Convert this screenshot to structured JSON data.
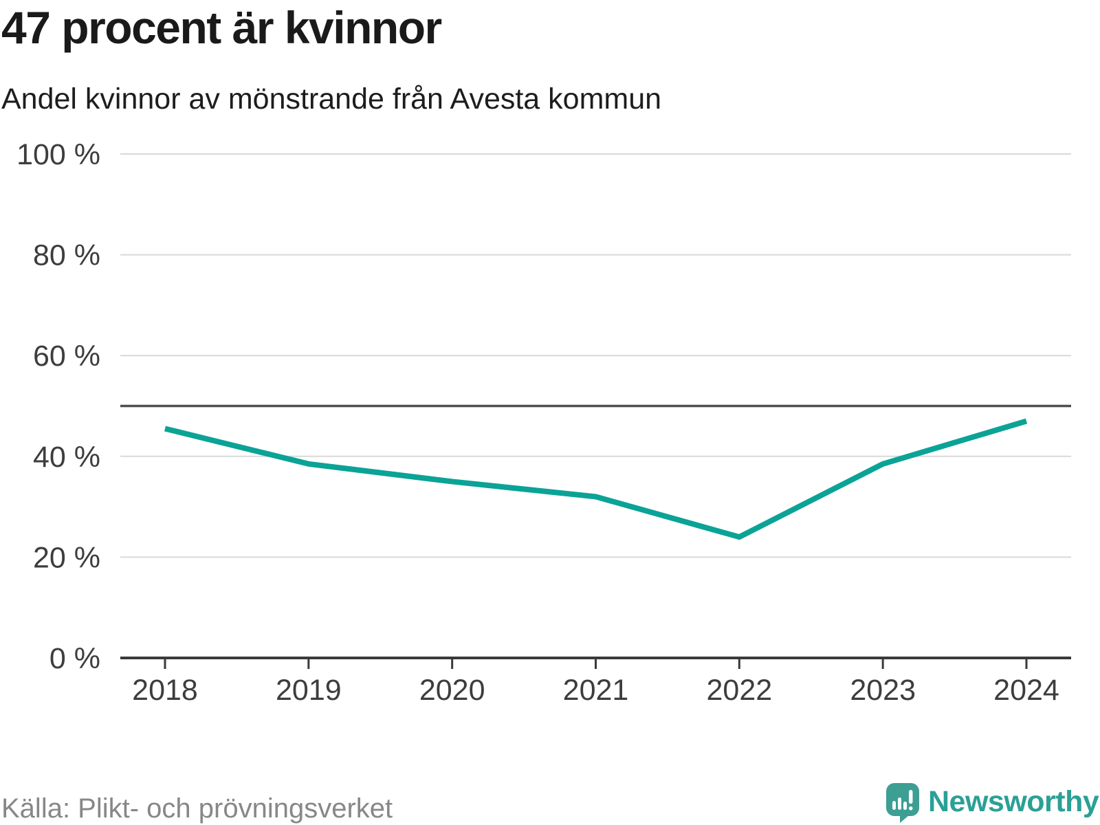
{
  "header": {
    "title": "47 procent är kvinnor",
    "subtitle": "Andel kvinnor av mönstrande från Avesta kommun"
  },
  "footer": {
    "source": "Källa: Plikt- och prövningsverket",
    "brand": "Newsworthy"
  },
  "colors": {
    "background": "#ffffff",
    "line": "#0aa396",
    "grid": "#d9d9d9",
    "reference_line": "#4f4f4f",
    "axis": "#3a3a3a",
    "tick_label": "#3d3d3d",
    "title_text": "#1a1a1a",
    "source_text": "#878787",
    "brand_logo": "#3d9e94",
    "brand_text": "#2ba096",
    "logo_glyph": "#ffffff"
  },
  "chart_data": {
    "type": "line",
    "title": "47 procent är kvinnor",
    "subtitle": "Andel kvinnor av mönstrande från Avesta kommun",
    "x": [
      2018,
      2019,
      2020,
      2021,
      2022,
      2023,
      2024
    ],
    "x_tick_labels": [
      "2018",
      "2019",
      "2020",
      "2021",
      "2022",
      "2023",
      "2024"
    ],
    "series": [
      {
        "name": "Andel kvinnor av mönstrande",
        "values": [
          45.5,
          38.5,
          35,
          32,
          24,
          38.5,
          47
        ]
      }
    ],
    "unit": "%",
    "ylim": [
      0,
      100
    ],
    "y_ticks": [
      0,
      20,
      40,
      60,
      80,
      100
    ],
    "y_tick_labels": [
      "0 %",
      "20 %",
      "40 %",
      "60 %",
      "80 %",
      "100 %"
    ],
    "reference_line": 50,
    "grid": "horizontal-only",
    "legend": "none"
  }
}
